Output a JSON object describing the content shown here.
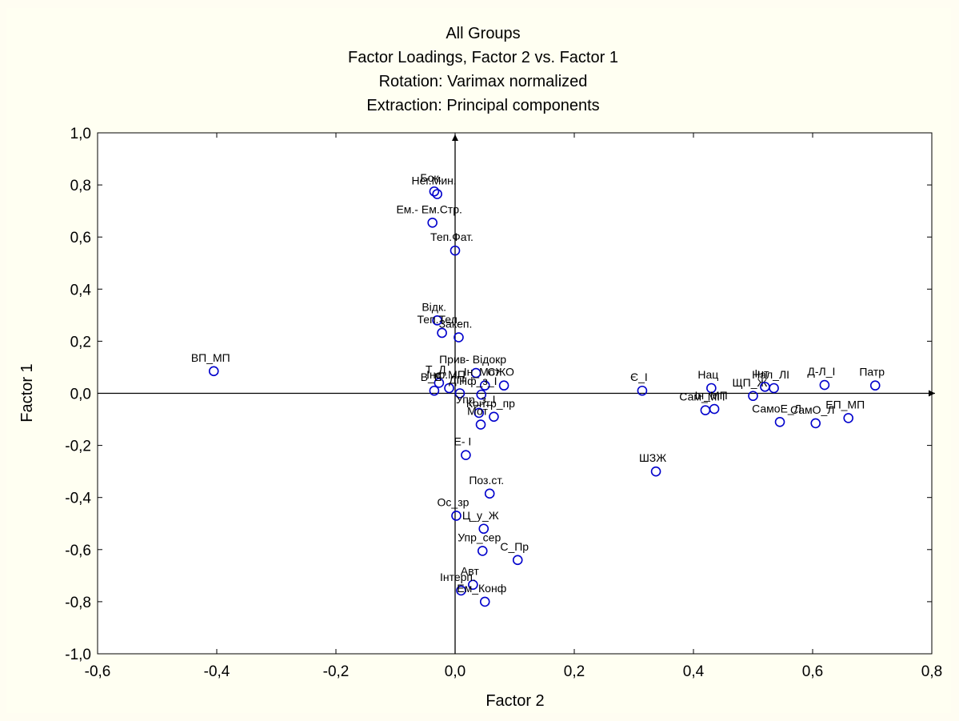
{
  "chart_data": {
    "type": "scatter",
    "title_lines": [
      "All Groups",
      "Factor Loadings, Factor 2 vs. Factor 1",
      "Rotation: Varimax normalized",
      "Extraction: Principal components"
    ],
    "xlabel": "Factor 2",
    "ylabel": "Factor 1",
    "xlim": [
      -0.6,
      0.8
    ],
    "ylim": [
      -1.0,
      1.0
    ],
    "xticks": [
      "-0,6",
      "-0,4",
      "-0,2",
      "0,0",
      "0,2",
      "0,4",
      "0,6",
      "0,8"
    ],
    "yticks": [
      "1,0",
      "0,8",
      "0,6",
      "0,4",
      "0,2",
      "0,0",
      "-0,2",
      "-0,4",
      "-0,6",
      "-0,8",
      "-1,0"
    ],
    "grid": false,
    "marker_color": "#0000cc",
    "points": [
      {
        "label": "Бок.",
        "x": -0.035,
        "y": 0.775
      },
      {
        "label": "Нег.Мин.",
        "x": -0.03,
        "y": 0.765
      },
      {
        "label": "Ем.- Ем.Стр.",
        "x": -0.038,
        "y": 0.655
      },
      {
        "label": "Теп.Фат.",
        "x": 0.0,
        "y": 0.548
      },
      {
        "label": "Відк.",
        "x": -0.03,
        "y": 0.28
      },
      {
        "label": "Теп.Тел.",
        "x": -0.022,
        "y": 0.232
      },
      {
        "label": "Закеп.",
        "x": 0.006,
        "y": 0.215
      },
      {
        "label": "ВП_МП",
        "x": -0.405,
        "y": 0.085
      },
      {
        "label": "Прив- Відокр",
        "x": 0.035,
        "y": 0.078
      },
      {
        "label": "СЖО",
        "x": 0.082,
        "y": 0.03
      },
      {
        "label": "Т_Д",
        "x": -0.027,
        "y": 0.04
      },
      {
        "label": "В_Е",
        "x": -0.035,
        "y": 0.01
      },
      {
        "label": "Інф.МП",
        "x": -0.01,
        "y": 0.02
      },
      {
        "label": "ДП",
        "x": 0.008,
        "y": 0.0
      },
      {
        "label": "Ін_Мот",
        "x": 0.05,
        "y": 0.03
      },
      {
        "label": "Нф_з_І",
        "x": 0.044,
        "y": -0.005
      },
      {
        "label": "Упр_з_І",
        "x": 0.04,
        "y": -0.075
      },
      {
        "label": "Контр_пр",
        "x": 0.065,
        "y": -0.09
      },
      {
        "label": "Мот",
        "x": 0.043,
        "y": -0.12
      },
      {
        "label": "Є_І",
        "x": 0.314,
        "y": 0.01
      },
      {
        "label": "Нац",
        "x": 0.43,
        "y": 0.02
      },
      {
        "label": "ЩП_Ж",
        "x": 0.5,
        "y": -0.01
      },
      {
        "label": "Нал_ЛІ",
        "x": 0.535,
        "y": 0.02
      },
      {
        "label": "Інт",
        "x": 0.52,
        "y": 0.025
      },
      {
        "label": "Д-Л_І",
        "x": 0.62,
        "y": 0.032
      },
      {
        "label": "Патр",
        "x": 0.705,
        "y": 0.03
      },
      {
        "label": "Сам_МП",
        "x": 0.42,
        "y": -0.065
      },
      {
        "label": "Ін_МП",
        "x": 0.435,
        "y": -0.06
      },
      {
        "label": "СамоЕ_Л",
        "x": 0.545,
        "y": -0.11
      },
      {
        "label": "СамО_Л",
        "x": 0.605,
        "y": -0.115
      },
      {
        "label": "ЕП_МП",
        "x": 0.66,
        "y": -0.095
      },
      {
        "label": "ШЗЖ",
        "x": 0.337,
        "y": -0.3
      },
      {
        "label": "Е- І",
        "x": 0.018,
        "y": -0.237
      },
      {
        "label": "Поз.ст.",
        "x": 0.058,
        "y": -0.385
      },
      {
        "label": "Ос_зр",
        "x": 0.002,
        "y": -0.47
      },
      {
        "label": "Ц_у_Ж",
        "x": 0.048,
        "y": -0.52
      },
      {
        "label": "Упр_сер",
        "x": 0.046,
        "y": -0.605
      },
      {
        "label": "С_Пр",
        "x": 0.105,
        "y": -0.64
      },
      {
        "label": "Авт",
        "x": 0.03,
        "y": -0.735
      },
      {
        "label": "Інтерп.",
        "x": 0.01,
        "y": -0.757
      },
      {
        "label": "Ем_Конф",
        "x": 0.05,
        "y": -0.8
      }
    ]
  }
}
